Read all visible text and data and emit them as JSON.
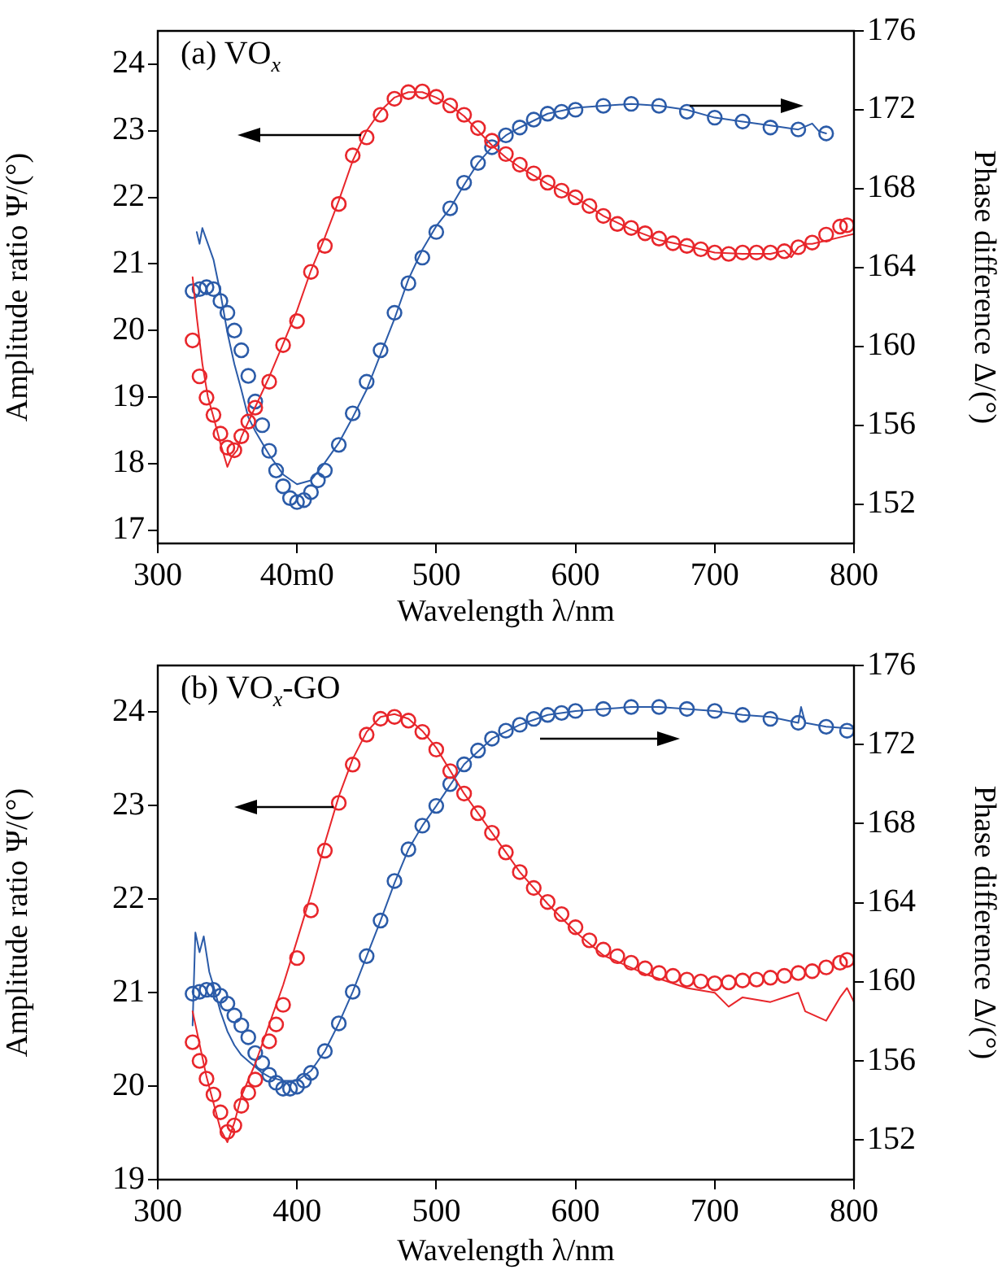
{
  "chart_data": [
    {
      "type": "line",
      "title": "(a) VO$_{x}$",
      "xlabel": "Wavelength λ/nm",
      "ylabel": "Amplitude ratio Ψ/(°)",
      "y2label": "Phase difference Δ/(°)",
      "xlim": [
        300,
        800
      ],
      "xticks": [
        300,
        {
          "value": 400,
          "label": "40m0"
        },
        500,
        600,
        700,
        800
      ],
      "ylim": [
        16.8,
        24.5
      ],
      "yticks": [
        17,
        18,
        19,
        20,
        21,
        22,
        23,
        24
      ],
      "y2lim": [
        150,
        176
      ],
      "y2ticks": [
        152,
        156,
        160,
        164,
        168,
        172,
        176
      ],
      "series": [
        {
          "type": "line",
          "color": "#e8262b",
          "marker": "none",
          "x": [
            325,
            328,
            332,
            336,
            340,
            345,
            350,
            353,
            357,
            360,
            370,
            380,
            390,
            400,
            410,
            420,
            430,
            440,
            450,
            460,
            470,
            480,
            490,
            500,
            510,
            520,
            530,
            540,
            550,
            560,
            570,
            580,
            600,
            620,
            640,
            660,
            680,
            700,
            720,
            740,
            750,
            755,
            760,
            765,
            770,
            780,
            790,
            800
          ],
          "values": [
            20.8,
            20.2,
            19.5,
            19.0,
            18.7,
            18.3,
            17.95,
            18.1,
            18.2,
            18.4,
            18.85,
            19.3,
            19.8,
            20.3,
            20.9,
            21.4,
            21.95,
            22.55,
            23.0,
            23.3,
            23.5,
            23.58,
            23.58,
            23.5,
            23.38,
            23.22,
            23.0,
            22.78,
            22.6,
            22.45,
            22.33,
            22.2,
            22.0,
            21.72,
            21.52,
            21.36,
            21.27,
            21.17,
            21.15,
            21.15,
            21.2,
            21.1,
            21.25,
            21.3,
            21.3,
            21.35,
            21.4,
            21.45
          ]
        },
        {
          "type": "scatter",
          "color": "#e8262b",
          "marker": "circle",
          "x": [
            325,
            330,
            335,
            340,
            345,
            350,
            355,
            360,
            365,
            370,
            380,
            390,
            400,
            410,
            420,
            430,
            440,
            450,
            460,
            470,
            480,
            490,
            500,
            510,
            520,
            530,
            540,
            550,
            560,
            570,
            580,
            590,
            600,
            610,
            620,
            630,
            640,
            650,
            660,
            670,
            680,
            690,
            700,
            710,
            720,
            730,
            740,
            750,
            760,
            770,
            780,
            790,
            795
          ],
          "values": [
            19.85,
            19.31,
            18.99,
            18.73,
            18.45,
            18.24,
            18.2,
            18.41,
            18.63,
            18.84,
            19.23,
            19.78,
            20.14,
            20.88,
            21.27,
            21.9,
            22.63,
            22.9,
            23.24,
            23.48,
            23.58,
            23.59,
            23.51,
            23.38,
            23.24,
            23.04,
            22.85,
            22.65,
            22.49,
            22.36,
            22.22,
            22.1,
            22.0,
            21.87,
            21.72,
            21.6,
            21.54,
            21.46,
            21.38,
            21.31,
            21.27,
            21.22,
            21.17,
            21.15,
            21.17,
            21.17,
            21.17,
            21.19,
            21.25,
            21.32,
            21.44,
            21.56,
            21.58
          ]
        },
        {
          "type": "line",
          "color": "#2b5ba8",
          "marker": "none",
          "axis": "y2",
          "x": [
            328,
            330,
            332,
            335,
            340,
            345,
            350,
            355,
            360,
            365,
            370,
            375,
            380,
            390,
            400,
            410,
            420,
            430,
            440,
            450,
            460,
            470,
            480,
            490,
            500,
            510,
            520,
            530,
            540,
            550,
            560,
            580,
            600,
            620,
            640,
            660,
            680,
            700,
            720,
            740,
            760,
            770,
            775,
            780
          ],
          "values": [
            165.8,
            165.2,
            166.0,
            165.4,
            164.4,
            162.7,
            160.7,
            159.1,
            157.8,
            156.4,
            155.7,
            155.1,
            154.5,
            153.5,
            153.0,
            153.2,
            154.1,
            155.1,
            156.4,
            157.8,
            159.6,
            161.4,
            163.4,
            164.9,
            166.1,
            167.0,
            168.2,
            169.3,
            170.1,
            170.7,
            171.1,
            171.8,
            172.1,
            172.2,
            172.3,
            172.2,
            172.0,
            171.6,
            171.4,
            171.2,
            171.0,
            171.3,
            170.9,
            170.8
          ]
        },
        {
          "type": "scatter",
          "color": "#2b5ba8",
          "marker": "circle",
          "axis": "y2",
          "x": [
            325,
            330,
            335,
            340,
            345,
            350,
            355,
            360,
            365,
            370,
            375,
            380,
            385,
            390,
            395,
            400,
            405,
            410,
            415,
            420,
            430,
            440,
            450,
            460,
            470,
            480,
            490,
            500,
            510,
            520,
            530,
            540,
            550,
            560,
            570,
            580,
            590,
            600,
            620,
            640,
            660,
            680,
            700,
            720,
            740,
            760,
            780
          ],
          "values": [
            162.8,
            162.9,
            163.0,
            162.9,
            162.3,
            161.7,
            160.8,
            159.8,
            158.5,
            157.2,
            156.0,
            154.7,
            153.7,
            152.9,
            152.3,
            152.1,
            152.2,
            152.6,
            153.2,
            153.7,
            155.0,
            156.6,
            158.2,
            159.8,
            161.7,
            163.2,
            164.5,
            165.8,
            167.0,
            168.3,
            169.3,
            170.1,
            170.7,
            171.1,
            171.5,
            171.8,
            171.9,
            172.0,
            172.2,
            172.3,
            172.2,
            171.9,
            171.6,
            171.4,
            171.1,
            171.0,
            170.8
          ]
        }
      ]
    },
    {
      "type": "line",
      "title": "(b) VO$_{x}$-GO",
      "xlabel": "Wavelength λ/nm",
      "ylabel": "Amplitude ratio Ψ/(°)",
      "y2label": "Phase difference Δ/(°)",
      "xlim": [
        300,
        800
      ],
      "xticks": [
        300,
        400,
        500,
        600,
        700,
        800
      ],
      "ylim": [
        19,
        24.5
      ],
      "yticks": [
        19,
        20,
        21,
        22,
        23,
        24
      ],
      "y2lim": [
        150,
        176
      ],
      "y2ticks": [
        152,
        156,
        160,
        164,
        168,
        172,
        176
      ],
      "series": [
        {
          "type": "line",
          "color": "#e8262b",
          "marker": "none",
          "x": [
            325,
            330,
            335,
            340,
            345,
            350,
            355,
            360,
            370,
            380,
            390,
            400,
            410,
            420,
            430,
            440,
            450,
            460,
            470,
            480,
            490,
            500,
            520,
            540,
            560,
            580,
            600,
            620,
            650,
            680,
            700,
            710,
            720,
            740,
            750,
            760,
            765,
            780,
            790,
            795,
            800
          ],
          "values": [
            20.8,
            20.45,
            20.1,
            19.82,
            19.54,
            19.4,
            19.61,
            19.89,
            20.24,
            20.66,
            21.08,
            21.56,
            22.05,
            22.6,
            23.1,
            23.5,
            23.79,
            23.95,
            23.98,
            23.93,
            23.8,
            23.62,
            23.13,
            22.71,
            22.29,
            21.95,
            21.65,
            21.4,
            21.2,
            21.05,
            21.0,
            20.85,
            20.95,
            20.9,
            20.95,
            21.0,
            20.8,
            20.7,
            20.95,
            21.05,
            20.9
          ]
        },
        {
          "type": "scatter",
          "color": "#e8262b",
          "marker": "circle",
          "x": [
            325,
            330,
            335,
            340,
            345,
            350,
            355,
            360,
            365,
            370,
            380,
            385,
            390,
            400,
            410,
            420,
            430,
            440,
            450,
            460,
            470,
            480,
            490,
            500,
            510,
            520,
            530,
            540,
            550,
            560,
            570,
            580,
            590,
            600,
            610,
            620,
            630,
            640,
            650,
            660,
            670,
            680,
            690,
            700,
            710,
            720,
            730,
            740,
            750,
            760,
            770,
            780,
            790,
            795
          ],
          "values": [
            20.47,
            20.27,
            20.08,
            19.91,
            19.72,
            19.51,
            19.58,
            19.79,
            19.93,
            20.07,
            20.48,
            20.66,
            20.87,
            21.37,
            21.88,
            22.52,
            23.03,
            23.44,
            23.76,
            23.93,
            23.95,
            23.91,
            23.79,
            23.6,
            23.37,
            23.13,
            22.92,
            22.71,
            22.5,
            22.29,
            22.12,
            21.97,
            21.84,
            21.7,
            21.56,
            21.46,
            21.39,
            21.32,
            21.26,
            21.21,
            21.18,
            21.14,
            21.12,
            21.1,
            21.11,
            21.13,
            21.14,
            21.16,
            21.18,
            21.21,
            21.23,
            21.27,
            21.32,
            21.35
          ]
        },
        {
          "type": "line",
          "color": "#2b5ba8",
          "marker": "none",
          "axis": "y2",
          "x": [
            325,
            327,
            330,
            333,
            337,
            340,
            345,
            350,
            355,
            360,
            365,
            370,
            375,
            380,
            390,
            400,
            410,
            420,
            430,
            440,
            450,
            460,
            470,
            480,
            490,
            500,
            520,
            540,
            560,
            580,
            600,
            620,
            640,
            660,
            680,
            700,
            720,
            740,
            760,
            762,
            765,
            780,
            800
          ],
          "values": [
            157.8,
            162.5,
            161.5,
            162.3,
            160.5,
            159.8,
            158.5,
            157.5,
            156.8,
            156.3,
            156.0,
            155.7,
            155.4,
            155.2,
            155.0,
            155.0,
            155.5,
            156.5,
            157.9,
            159.5,
            161.3,
            163.1,
            165.0,
            166.7,
            167.9,
            168.9,
            171.0,
            172.3,
            173.0,
            173.5,
            173.7,
            173.8,
            173.9,
            173.9,
            173.8,
            173.7,
            173.5,
            173.4,
            173.1,
            173.9,
            173.1,
            172.9,
            172.8
          ]
        },
        {
          "type": "scatter",
          "color": "#2b5ba8",
          "marker": "circle",
          "axis": "y2",
          "x": [
            325,
            330,
            335,
            340,
            345,
            350,
            355,
            360,
            365,
            370,
            375,
            380,
            385,
            390,
            395,
            400,
            405,
            410,
            420,
            430,
            440,
            450,
            460,
            470,
            480,
            490,
            500,
            510,
            520,
            530,
            540,
            550,
            560,
            570,
            580,
            590,
            600,
            620,
            640,
            660,
            680,
            700,
            720,
            740,
            760,
            780,
            795
          ],
          "values": [
            159.4,
            159.5,
            159.6,
            159.6,
            159.3,
            158.9,
            158.3,
            157.8,
            157.2,
            156.4,
            155.9,
            155.3,
            154.9,
            154.6,
            154.6,
            154.7,
            155.0,
            155.4,
            156.5,
            157.9,
            159.5,
            161.3,
            163.1,
            165.1,
            166.7,
            167.9,
            168.9,
            170.0,
            171.0,
            171.7,
            172.3,
            172.7,
            173.0,
            173.3,
            173.5,
            173.6,
            173.7,
            173.8,
            173.9,
            173.9,
            173.8,
            173.7,
            173.5,
            173.3,
            173.1,
            172.9,
            172.7
          ]
        }
      ]
    }
  ]
}
